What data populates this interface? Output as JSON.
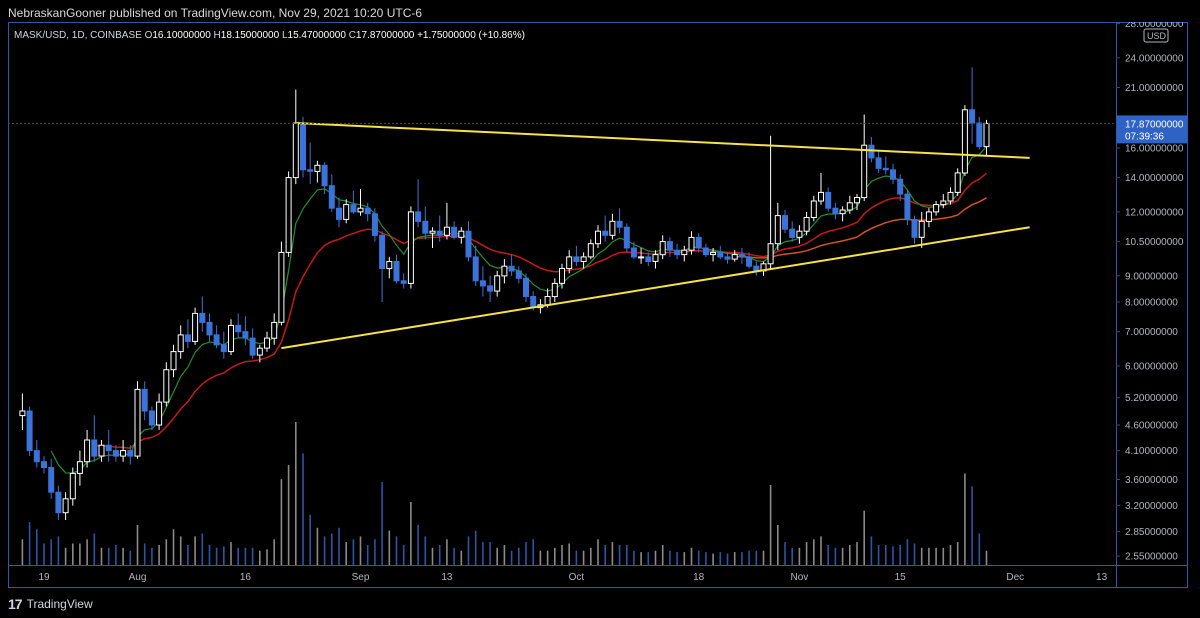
{
  "header": {
    "attribution": "NebraskanGooner published on TradingView.com, Nov 29, 2021 10:20 UTC-6"
  },
  "footer": {
    "brand": "TradingView",
    "logo_icon": "tradingview-logo-icon"
  },
  "colors": {
    "background": "#000000",
    "frame": "#2a5aa8",
    "bull": "#ffffff",
    "bear": "#3b73d8",
    "ema_fast": "#1f8f2f",
    "ema_slow": "#c21a1a",
    "ma_long": "#d4541a",
    "trendline": "#f5e14a",
    "crosshair": "#4a4a4a",
    "price_label_bg": "#2f62c5"
  },
  "chart_data": {
    "type": "candlestick",
    "symbol": "MASK/USD",
    "interval": "1D",
    "exchange": "COINBASE",
    "ohlc_labels": {
      "o": "O",
      "h": "H",
      "l": "L",
      "c": "C"
    },
    "ohlc": {
      "open": "16.10000000",
      "high": "18.15000000",
      "low": "15.47000000",
      "close": "17.87000000",
      "change": "+1.75000000",
      "change_pct": "(+10.86%)"
    },
    "currency": "USD",
    "last_price": "17.87000000",
    "countdown": "07:39:36",
    "y_scale": "log",
    "y_range": [
      2.45,
      28.2
    ],
    "y_ticks": [
      "28.00000000",
      "24.00000000",
      "21.00000000",
      "16.00000000",
      "14.00000000",
      "12.00000000",
      "10.50000000",
      "9.00000000",
      "8.00000000",
      "7.00000000",
      "6.00000000",
      "5.20000000",
      "4.60000000",
      "4.10000000",
      "3.60000000",
      "3.20000000",
      "2.85000000",
      "2.55000000"
    ],
    "x_ticks": [
      {
        "label": "19",
        "date": "2021-07-19"
      },
      {
        "label": "Aug",
        "date": "2021-08-01"
      },
      {
        "label": "16",
        "date": "2021-08-16"
      },
      {
        "label": "Sep",
        "date": "2021-09-01"
      },
      {
        "label": "13",
        "date": "2021-09-13"
      },
      {
        "label": "Oct",
        "date": "2021-10-01"
      },
      {
        "label": "18",
        "date": "2021-10-18"
      },
      {
        "label": "Nov",
        "date": "2021-11-01"
      },
      {
        "label": "15",
        "date": "2021-11-15"
      },
      {
        "label": "Dec",
        "date": "2021-12-01"
      },
      {
        "label": "13",
        "date": "2021-12-13"
      }
    ],
    "x_range": [
      "2021-07-14",
      "2021-12-15"
    ],
    "grid": false,
    "first_date": "2021-07-16",
    "candles": [
      [
        4.8,
        5.3,
        4.5,
        4.9
      ],
      [
        4.9,
        5.0,
        4.0,
        4.1
      ],
      [
        4.1,
        4.3,
        3.8,
        3.9
      ],
      [
        3.9,
        4.0,
        3.7,
        3.8
      ],
      [
        3.8,
        3.95,
        3.3,
        3.4
      ],
      [
        3.4,
        3.5,
        3.0,
        3.1
      ],
      [
        3.1,
        3.4,
        3.0,
        3.3
      ],
      [
        3.3,
        3.8,
        3.2,
        3.7
      ],
      [
        3.7,
        4.1,
        3.5,
        3.9
      ],
      [
        3.9,
        4.5,
        3.8,
        4.3
      ],
      [
        4.3,
        4.8,
        3.9,
        4.0
      ],
      [
        4.0,
        4.3,
        3.9,
        4.2
      ],
      [
        4.2,
        4.5,
        3.9,
        4.1
      ],
      [
        4.1,
        4.2,
        3.9,
        4.0
      ],
      [
        4.0,
        4.3,
        3.9,
        4.1
      ],
      [
        4.1,
        4.2,
        3.85,
        4.0
      ],
      [
        4.0,
        5.6,
        3.95,
        5.4
      ],
      [
        5.4,
        5.6,
        4.7,
        4.9
      ],
      [
        4.9,
        5.0,
        4.5,
        4.6
      ],
      [
        4.6,
        5.3,
        4.5,
        5.1
      ],
      [
        5.1,
        6.1,
        5.0,
        5.9
      ],
      [
        5.9,
        6.6,
        5.7,
        6.4
      ],
      [
        6.4,
        7.2,
        6.2,
        6.9
      ],
      [
        6.9,
        7.4,
        6.5,
        6.7
      ],
      [
        6.7,
        7.8,
        6.6,
        7.6
      ],
      [
        7.6,
        8.2,
        7.0,
        7.3
      ],
      [
        7.3,
        7.6,
        6.7,
        6.9
      ],
      [
        6.9,
        7.2,
        6.5,
        6.6
      ],
      [
        6.6,
        7.0,
        6.2,
        6.4
      ],
      [
        6.4,
        7.4,
        6.3,
        7.2
      ],
      [
        7.2,
        7.6,
        6.8,
        7.0
      ],
      [
        7.0,
        7.5,
        6.6,
        6.8
      ],
      [
        6.8,
        7.1,
        6.2,
        6.3
      ],
      [
        6.3,
        6.6,
        6.1,
        6.5
      ],
      [
        6.5,
        7.0,
        6.4,
        6.8
      ],
      [
        6.8,
        7.6,
        6.6,
        7.3
      ],
      [
        7.3,
        10.5,
        7.2,
        10.0
      ],
      [
        10.0,
        14.4,
        9.8,
        14.0
      ],
      [
        14.0,
        20.8,
        13.6,
        17.9
      ],
      [
        17.9,
        18.4,
        14.0,
        14.5
      ],
      [
        14.5,
        16.4,
        13.6,
        14.4
      ],
      [
        14.4,
        15.1,
        13.7,
        14.8
      ],
      [
        14.8,
        15.0,
        13.0,
        13.5
      ],
      [
        13.5,
        14.2,
        12.0,
        12.2
      ],
      [
        12.2,
        12.8,
        11.2,
        11.6
      ],
      [
        11.6,
        12.7,
        11.4,
        12.4
      ],
      [
        12.4,
        13.2,
        11.9,
        12.0
      ],
      [
        12.0,
        13.3,
        11.8,
        12.2
      ],
      [
        12.2,
        12.5,
        11.5,
        11.9
      ],
      [
        11.9,
        12.2,
        10.5,
        10.8
      ],
      [
        10.8,
        11.0,
        8.0,
        9.3
      ],
      [
        9.3,
        9.8,
        8.9,
        9.6
      ],
      [
        9.6,
        9.9,
        8.7,
        8.8
      ],
      [
        8.8,
        9.1,
        8.5,
        8.7
      ],
      [
        8.7,
        12.3,
        8.5,
        12.0
      ],
      [
        12.0,
        13.9,
        11.2,
        11.5
      ],
      [
        11.5,
        12.3,
        10.6,
        10.9
      ],
      [
        10.9,
        11.2,
        10.2,
        11.0
      ],
      [
        11.0,
        11.8,
        10.5,
        10.8
      ],
      [
        10.8,
        12.5,
        10.6,
        11.2
      ],
      [
        11.2,
        11.5,
        10.6,
        10.7
      ],
      [
        10.7,
        11.2,
        10.4,
        11.0
      ],
      [
        11.0,
        11.5,
        9.6,
        9.8
      ],
      [
        9.8,
        10.3,
        8.6,
        8.8
      ],
      [
        8.8,
        9.4,
        8.2,
        8.6
      ],
      [
        8.6,
        9.0,
        8.0,
        8.4
      ],
      [
        8.4,
        9.2,
        8.2,
        9.0
      ],
      [
        9.0,
        9.7,
        8.7,
        9.4
      ],
      [
        9.4,
        9.9,
        9.0,
        9.2
      ],
      [
        9.2,
        9.4,
        8.7,
        8.9
      ],
      [
        8.9,
        9.1,
        8.0,
        8.2
      ],
      [
        8.2,
        8.4,
        7.7,
        7.8
      ],
      [
        7.8,
        8.1,
        7.6,
        7.9
      ],
      [
        7.9,
        8.5,
        7.8,
        8.2
      ],
      [
        8.2,
        8.9,
        8.0,
        8.7
      ],
      [
        8.7,
        9.5,
        8.5,
        9.3
      ],
      [
        9.3,
        10.1,
        9.1,
        9.8
      ],
      [
        9.8,
        10.3,
        9.4,
        9.6
      ],
      [
        9.6,
        10.0,
        9.3,
        9.8
      ],
      [
        9.8,
        10.6,
        9.7,
        10.4
      ],
      [
        10.4,
        11.3,
        10.2,
        11.0
      ],
      [
        11.0,
        11.8,
        10.5,
        10.8
      ],
      [
        10.8,
        11.9,
        10.6,
        11.5
      ],
      [
        11.5,
        12.2,
        10.9,
        11.2
      ],
      [
        11.2,
        11.4,
        10.0,
        10.2
      ],
      [
        10.2,
        10.5,
        9.7,
        9.8
      ],
      [
        9.8,
        10.2,
        9.5,
        9.8
      ],
      [
        9.8,
        10.0,
        9.4,
        9.6
      ],
      [
        9.6,
        10.1,
        9.3,
        9.9
      ],
      [
        9.9,
        10.8,
        9.7,
        10.5
      ],
      [
        10.5,
        10.7,
        9.8,
        10.1
      ],
      [
        10.1,
        10.4,
        9.7,
        9.9
      ],
      [
        9.9,
        10.3,
        9.6,
        10.1
      ],
      [
        10.1,
        11.0,
        9.9,
        10.7
      ],
      [
        10.7,
        10.9,
        10.0,
        10.2
      ],
      [
        10.2,
        10.4,
        9.8,
        9.9
      ],
      [
        9.9,
        10.2,
        9.6,
        10.0
      ],
      [
        10.0,
        10.3,
        9.7,
        9.8
      ],
      [
        9.8,
        10.0,
        9.5,
        9.7
      ],
      [
        9.7,
        10.1,
        9.6,
        9.9
      ],
      [
        9.9,
        10.2,
        9.5,
        9.8
      ],
      [
        9.8,
        10.0,
        9.3,
        9.4
      ],
      [
        9.4,
        9.6,
        9.0,
        9.2
      ],
      [
        9.2,
        9.6,
        9.0,
        9.5
      ],
      [
        9.5,
        16.9,
        9.3,
        10.4
      ],
      [
        10.4,
        12.5,
        10.1,
        11.8
      ],
      [
        11.8,
        12.1,
        10.9,
        11.1
      ],
      [
        11.1,
        11.5,
        10.5,
        10.7
      ],
      [
        10.7,
        11.3,
        10.4,
        11.0
      ],
      [
        11.0,
        12.0,
        10.8,
        11.7
      ],
      [
        11.7,
        12.9,
        11.5,
        12.6
      ],
      [
        12.6,
        14.3,
        12.4,
        13.1
      ],
      [
        13.1,
        13.4,
        12.0,
        12.2
      ],
      [
        12.2,
        12.5,
        11.6,
        11.9
      ],
      [
        11.9,
        12.3,
        11.5,
        12.1
      ],
      [
        12.1,
        12.9,
        11.9,
        12.5
      ],
      [
        12.5,
        13.0,
        12.1,
        12.8
      ],
      [
        12.8,
        18.6,
        12.6,
        16.2
      ],
      [
        16.2,
        16.8,
        15.0,
        15.3
      ],
      [
        15.3,
        15.8,
        14.3,
        14.6
      ],
      [
        14.6,
        15.4,
        14.2,
        14.5
      ],
      [
        14.5,
        14.9,
        13.6,
        13.9
      ],
      [
        13.9,
        14.2,
        12.6,
        13.0
      ],
      [
        13.0,
        13.2,
        11.3,
        11.6
      ],
      [
        11.6,
        11.8,
        10.4,
        10.7
      ],
      [
        10.7,
        12.0,
        10.2,
        11.5
      ],
      [
        11.5,
        12.2,
        11.2,
        12.0
      ],
      [
        12.0,
        12.6,
        11.8,
        12.4
      ],
      [
        12.4,
        13.0,
        12.2,
        12.6
      ],
      [
        12.6,
        13.4,
        12.4,
        13.1
      ],
      [
        13.1,
        14.6,
        12.9,
        14.3
      ],
      [
        14.3,
        19.4,
        14.1,
        19.0
      ],
      [
        19.0,
        23.0,
        16.3,
        17.9
      ],
      [
        17.9,
        18.4,
        15.9,
        16.1
      ],
      [
        16.1,
        18.15,
        15.47,
        17.87
      ]
    ],
    "volume_relative": [
      0.18,
      0.3,
      0.25,
      0.15,
      0.18,
      0.2,
      0.12,
      0.15,
      0.15,
      0.18,
      0.22,
      0.12,
      0.12,
      0.14,
      0.12,
      0.1,
      0.28,
      0.15,
      0.12,
      0.14,
      0.18,
      0.25,
      0.2,
      0.14,
      0.2,
      0.22,
      0.14,
      0.12,
      0.13,
      0.16,
      0.12,
      0.12,
      0.12,
      0.1,
      0.11,
      0.18,
      0.6,
      0.7,
      1.0,
      0.78,
      0.35,
      0.26,
      0.2,
      0.22,
      0.26,
      0.16,
      0.18,
      0.2,
      0.14,
      0.18,
      0.58,
      0.24,
      0.2,
      0.14,
      0.44,
      0.28,
      0.2,
      0.12,
      0.14,
      0.18,
      0.12,
      0.1,
      0.2,
      0.24,
      0.16,
      0.16,
      0.12,
      0.14,
      0.1,
      0.12,
      0.16,
      0.18,
      0.1,
      0.1,
      0.12,
      0.14,
      0.15,
      0.1,
      0.1,
      0.12,
      0.18,
      0.14,
      0.16,
      0.14,
      0.14,
      0.1,
      0.09,
      0.09,
      0.1,
      0.14,
      0.1,
      0.09,
      0.09,
      0.12,
      0.1,
      0.09,
      0.08,
      0.09,
      0.08,
      0.09,
      0.09,
      0.1,
      0.1,
      0.1,
      0.56,
      0.28,
      0.16,
      0.12,
      0.12,
      0.16,
      0.18,
      0.2,
      0.14,
      0.12,
      0.12,
      0.14,
      0.16,
      0.38,
      0.2,
      0.14,
      0.14,
      0.13,
      0.14,
      0.18,
      0.15,
      0.12,
      0.12,
      0.12,
      0.12,
      0.14,
      0.16,
      0.64,
      0.55,
      0.22,
      0.1
    ],
    "annotations": {
      "upper_trendline": [
        [
          "2021-08-23",
          17.9
        ],
        [
          "2021-12-03",
          15.3
        ]
      ],
      "lower_trendline": [
        [
          "2021-08-21",
          6.5
        ],
        [
          "2021-12-03",
          11.2
        ]
      ],
      "ma_long_visible_from": "2021-10-23"
    }
  }
}
